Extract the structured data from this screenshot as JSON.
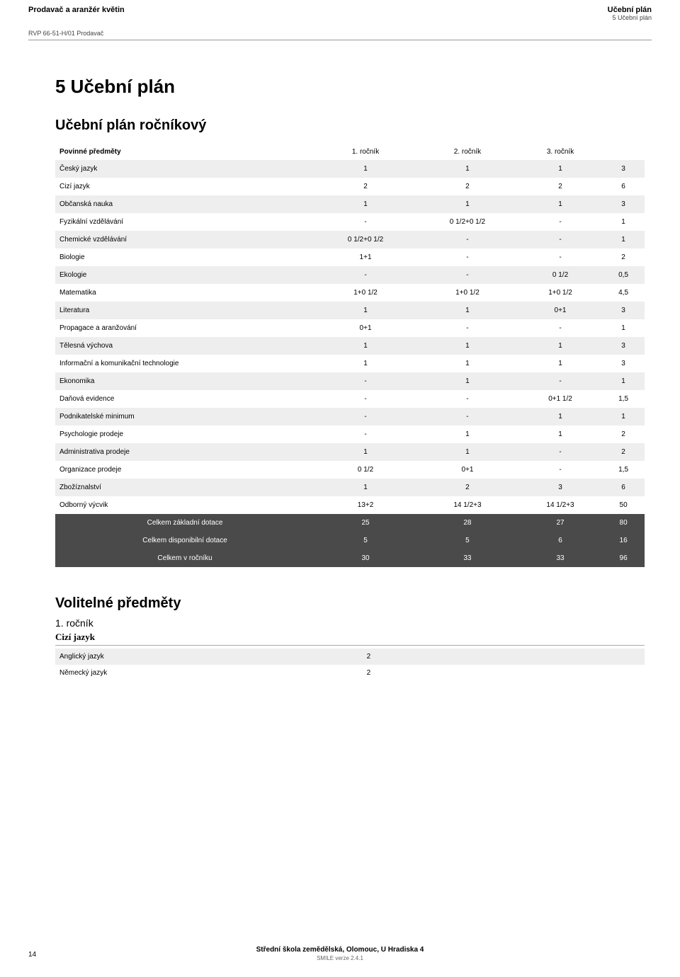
{
  "header": {
    "left_title": "Prodavač a aranžér květin",
    "left_sub": "RVP 66-51-H/01 Prodavač",
    "right_title": "Učební plán",
    "right_sub": "5 Učební plán"
  },
  "page_title": "5 Učební plán",
  "section_title": "Učební plán ročníkový",
  "table": {
    "header_label": "Povinné předměty",
    "col_labels": [
      "1. ročník",
      "2. ročník",
      "3. ročník",
      ""
    ],
    "rows": [
      {
        "label": "Český jazyk",
        "c": [
          "1",
          "1",
          "1",
          "3"
        ],
        "shade": true
      },
      {
        "label": "Cizí jazyk",
        "c": [
          "2",
          "2",
          "2",
          "6"
        ],
        "shade": false
      },
      {
        "label": "Občanská nauka",
        "c": [
          "1",
          "1",
          "1",
          "3"
        ],
        "shade": true
      },
      {
        "label": "Fyzikální vzdělávání",
        "c": [
          "-",
          "0 1/2+0 1/2",
          "-",
          "1"
        ],
        "shade": false
      },
      {
        "label": "Chemické vzdělávání",
        "c": [
          "0 1/2+0 1/2",
          "-",
          "-",
          "1"
        ],
        "shade": true
      },
      {
        "label": "Biologie",
        "c": [
          "1+1",
          "-",
          "-",
          "2"
        ],
        "shade": false
      },
      {
        "label": "Ekologie",
        "c": [
          "-",
          "-",
          "0 1/2",
          "0,5"
        ],
        "shade": true
      },
      {
        "label": "Matematika",
        "c": [
          "1+0 1/2",
          "1+0 1/2",
          "1+0 1/2",
          "4,5"
        ],
        "shade": false
      },
      {
        "label": "Literatura",
        "c": [
          "1",
          "1",
          "0+1",
          "3"
        ],
        "shade": true
      },
      {
        "label": "Propagace a aranžování",
        "c": [
          "0+1",
          "-",
          "-",
          "1"
        ],
        "shade": false
      },
      {
        "label": "Tělesná výchova",
        "c": [
          "1",
          "1",
          "1",
          "3"
        ],
        "shade": true
      },
      {
        "label": "Informační a komunikační technologie",
        "c": [
          "1",
          "1",
          "1",
          "3"
        ],
        "shade": false
      },
      {
        "label": "Ekonomika",
        "c": [
          "-",
          "1",
          "-",
          "1"
        ],
        "shade": true
      },
      {
        "label": "Daňová evidence",
        "c": [
          "-",
          "-",
          "0+1 1/2",
          "1,5"
        ],
        "shade": false
      },
      {
        "label": "Podnikatelské minimum",
        "c": [
          "-",
          "-",
          "1",
          "1"
        ],
        "shade": true
      },
      {
        "label": "Psychologie prodeje",
        "c": [
          "-",
          "1",
          "1",
          "2"
        ],
        "shade": false
      },
      {
        "label": "Administrativa prodeje",
        "c": [
          "1",
          "1",
          "-",
          "2"
        ],
        "shade": true
      },
      {
        "label": "Organizace prodeje",
        "c": [
          "0 1/2",
          "0+1",
          "-",
          "1,5"
        ],
        "shade": false
      },
      {
        "label": "Zbožíznalství",
        "c": [
          "1",
          "2",
          "3",
          "6"
        ],
        "shade": true
      },
      {
        "label": "Odborný výcvik",
        "c": [
          "13+2",
          "14 1/2+3",
          "14 1/2+3",
          "50"
        ],
        "shade": false
      }
    ],
    "totals": [
      {
        "label": "Celkem základní dotace",
        "c": [
          "25",
          "28",
          "27",
          "80"
        ]
      },
      {
        "label": "Celkem disponibilní dotace",
        "c": [
          "5",
          "5",
          "6",
          "16"
        ]
      },
      {
        "label": "Celkem v ročníku",
        "c": [
          "30",
          "33",
          "33",
          "96"
        ]
      }
    ]
  },
  "optional": {
    "title": "Volitelné předměty",
    "sub": "1. ročník",
    "lang_title": "Cizí jazyk",
    "rows": [
      {
        "label": "Anglický jazyk",
        "val": "2",
        "shade": true
      },
      {
        "label": "Německý jazyk",
        "val": "2",
        "shade": false
      }
    ]
  },
  "footer": {
    "school": "Střední škola zemědělská, Olomouc, U Hradiska 4",
    "version": "SMILE verze 2.4.1",
    "page_number": "14"
  },
  "style": {
    "shade_color": "#eeeeee",
    "totals_bg": "#4a4a4a",
    "totals_fg": "#ffffff"
  }
}
